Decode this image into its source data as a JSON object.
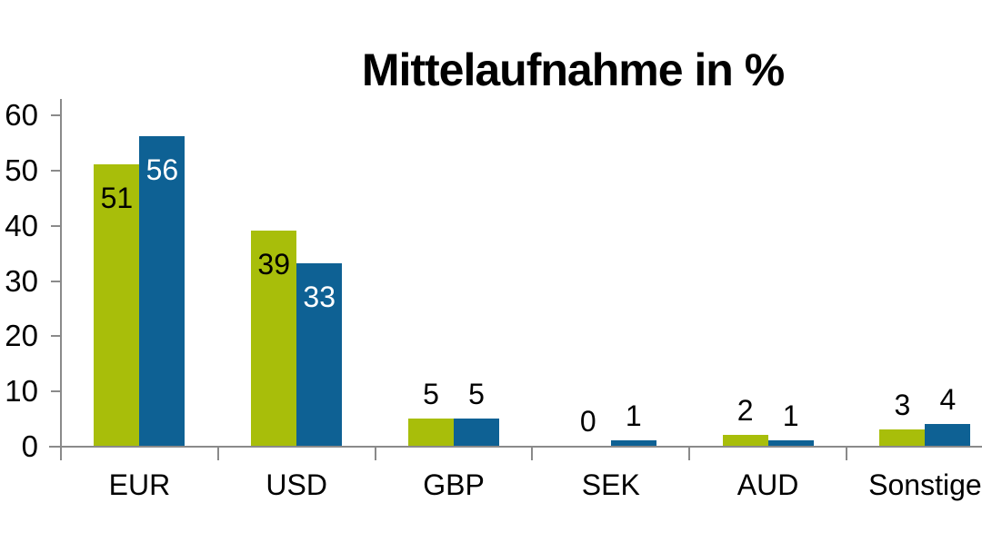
{
  "chart_data": {
    "type": "bar",
    "title": "Mittelaufnahme in %",
    "categories": [
      "EUR",
      "USD",
      "GBP",
      "SEK",
      "AUD",
      "Sonstige"
    ],
    "series": [
      {
        "id": "green",
        "color": "#A8BE0A",
        "inside_label_color": "#000000",
        "values": [
          51,
          39,
          5,
          0,
          2,
          3
        ]
      },
      {
        "id": "blue",
        "color": "#0E6194",
        "inside_label_color": "#FFFFFF",
        "values": [
          56,
          33,
          5,
          1,
          1,
          4
        ]
      }
    ],
    "ylim": [
      0,
      60
    ],
    "yticks": [
      0,
      10,
      20,
      30,
      40,
      50,
      60
    ],
    "xlabel": "",
    "ylabel": "",
    "grid": false,
    "legend": "none",
    "data_labels": true,
    "colors": {
      "axis": "#8A8A8A",
      "text": "#000000",
      "background": "#FFFFFF"
    }
  }
}
